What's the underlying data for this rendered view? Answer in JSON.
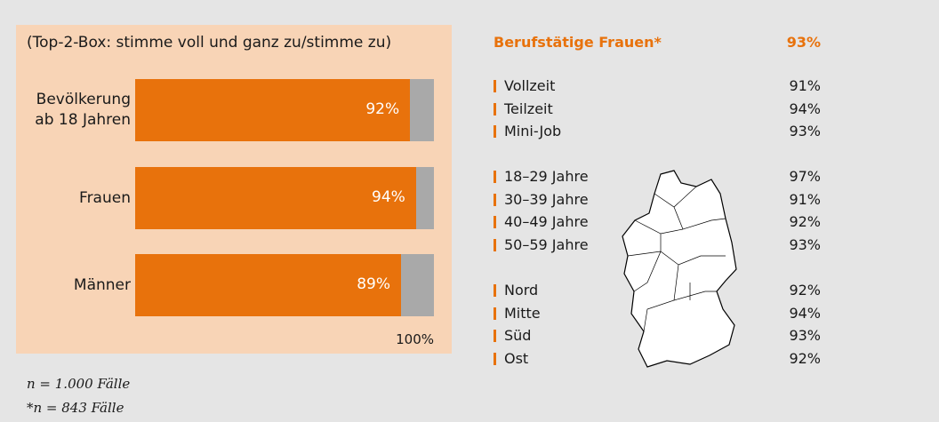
{
  "chart_data": {
    "type": "bar",
    "orientation": "horizontal",
    "subtitle": "(Top-2-Box: stimme voll und ganz zu/stimme zu)",
    "categories": [
      "Bevölkerung ab 18 Jahren",
      "Frauen",
      "Männer"
    ],
    "values": [
      92,
      94,
      89
    ],
    "value_labels": [
      "92%",
      "94%",
      "89%"
    ],
    "color": "#e8720c",
    "track_color": "#a9a9a9",
    "xlim": [
      0,
      100
    ],
    "xticks": [
      {
        "value": 100,
        "label": "100%"
      }
    ]
  },
  "notes": [
    "n = 1.000 Fälle",
    "*n = 843 Fälle"
  ],
  "breakdown": {
    "title": "Berufstätige Frauen*",
    "value": "93%",
    "groups": [
      [
        {
          "label": "Vollzeit",
          "value": "91%"
        },
        {
          "label": "Teilzeit",
          "value": "94%"
        },
        {
          "label": "Mini-Job",
          "value": "93%"
        }
      ],
      [
        {
          "label": "18–29 Jahre",
          "value": "97%"
        },
        {
          "label": "30–39 Jahre",
          "value": "91%"
        },
        {
          "label": "40–49 Jahre",
          "value": "92%"
        },
        {
          "label": "50–59 Jahre",
          "value": "93%"
        }
      ],
      [
        {
          "label": "Nord",
          "value": "92%"
        },
        {
          "label": "Mitte",
          "value": "94%"
        },
        {
          "label": "Süd",
          "value": "93%"
        },
        {
          "label": "Ost",
          "value": "92%"
        }
      ]
    ]
  }
}
